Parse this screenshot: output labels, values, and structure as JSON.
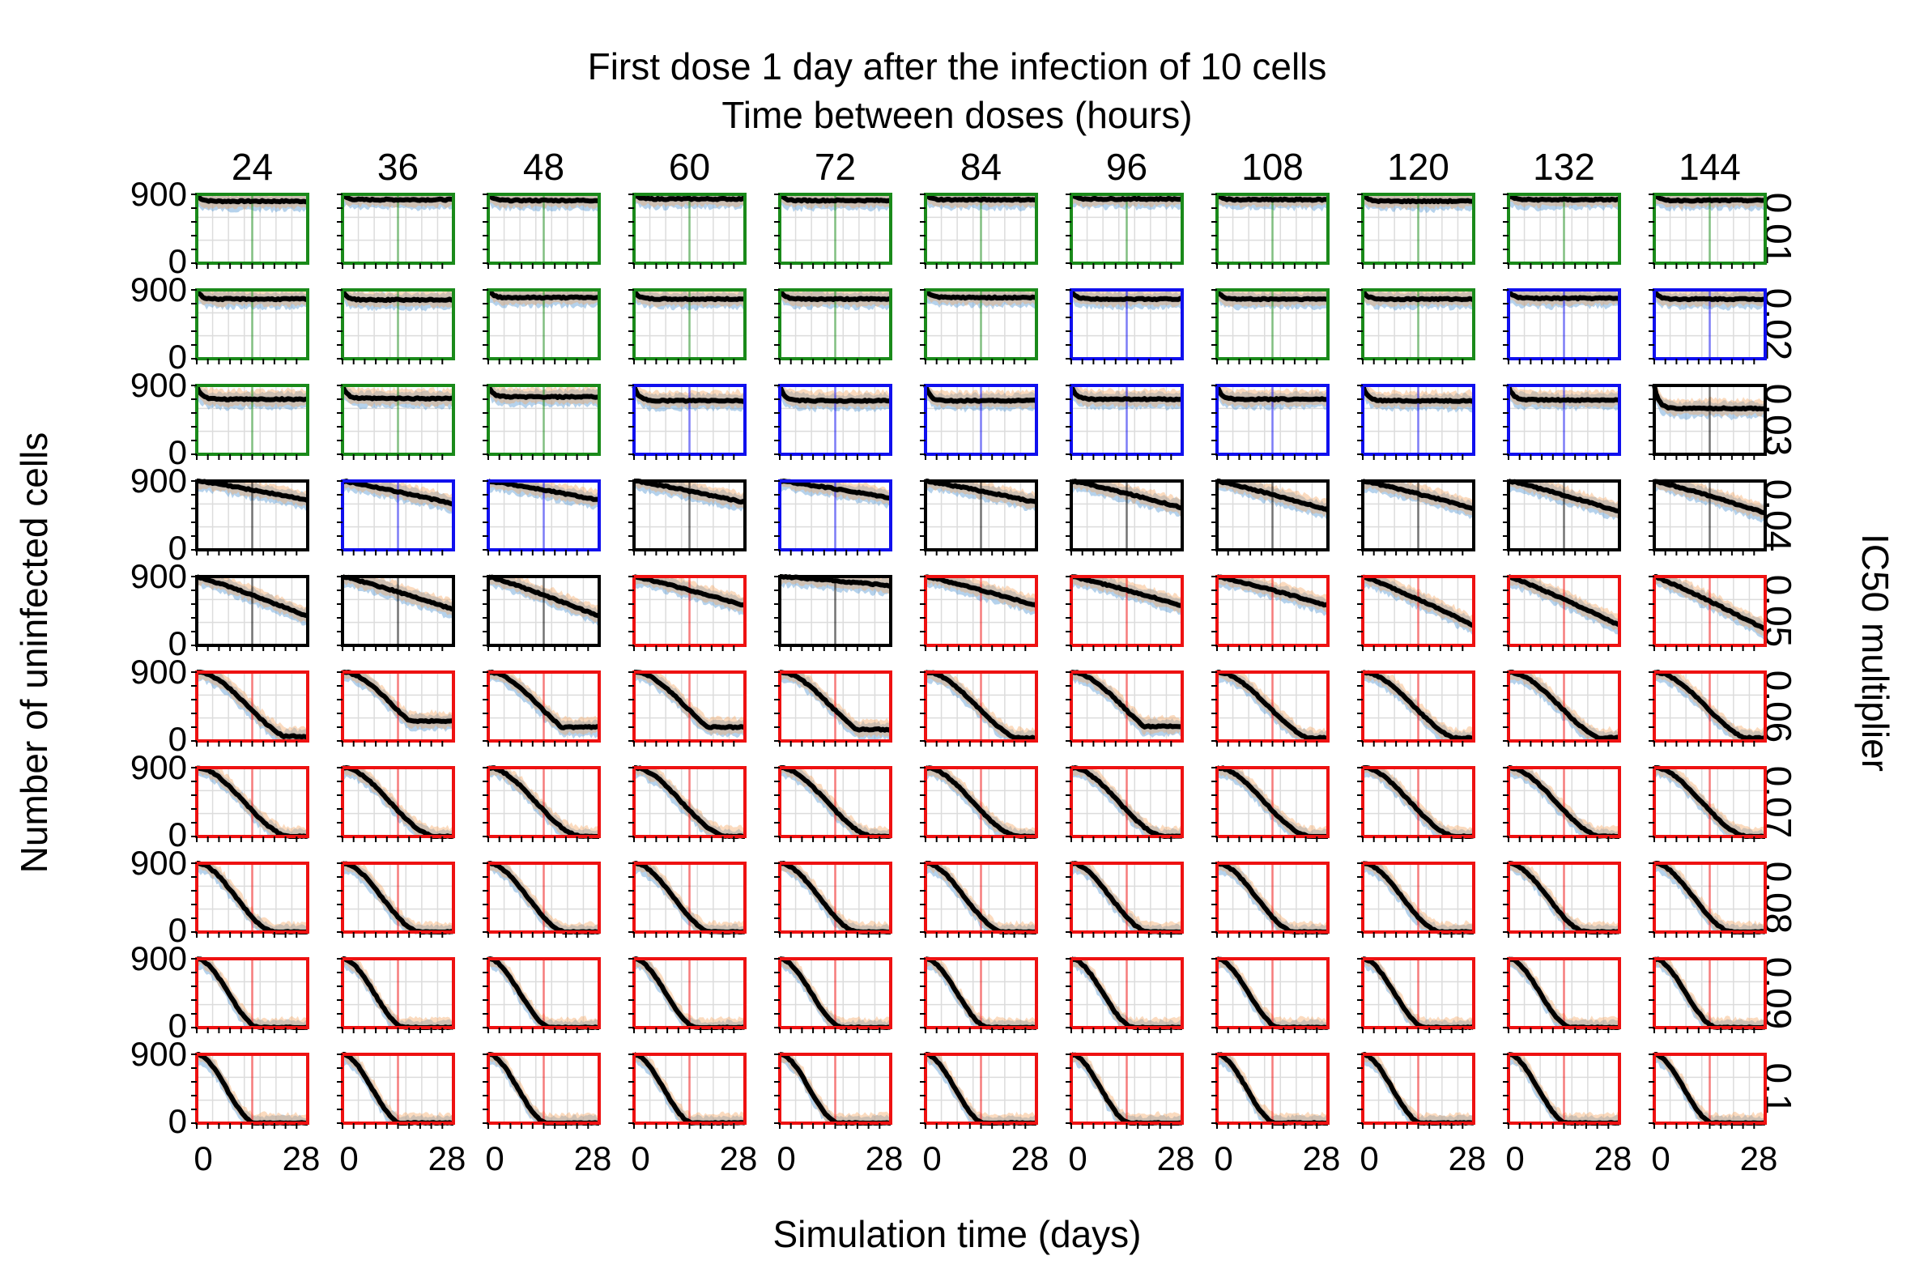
{
  "chart_data": {
    "type": "line",
    "title": "First dose 1 day after the infection of 10 cells",
    "subtitle": "Time between doses (hours)",
    "xlabel": "Simulation time (days)",
    "ylabel": "Number of uninfected cells",
    "right_label": "IC50 multiplier",
    "columns": [
      "24",
      "36",
      "48",
      "60",
      "72",
      "84",
      "96",
      "108",
      "120",
      "132",
      "144"
    ],
    "rows": [
      "0.01",
      "0.02",
      "0.03",
      "0.04",
      "0.05",
      "0.06",
      "0.07",
      "0.08",
      "0.09",
      "0.1"
    ],
    "xlim": [
      0,
      28
    ],
    "ylim": [
      0,
      900
    ],
    "x_tick_labels": [
      "0",
      "28"
    ],
    "y_tick_labels": [
      "900",
      "0"
    ],
    "frame_colors": {
      "g": "#1a8a1a",
      "b": "#1010ee",
      "k": "#000000",
      "r": "#ee1111"
    },
    "band_colors": {
      "blue": "#5b9bd5",
      "orange": "#f4a460",
      "grey": "#9e9e9e",
      "median": "#000000"
    },
    "frame_grid": [
      [
        "g",
        "g",
        "g",
        "g",
        "g",
        "g",
        "g",
        "g",
        "g",
        "g",
        "g"
      ],
      [
        "g",
        "g",
        "g",
        "g",
        "g",
        "g",
        "b",
        "g",
        "g",
        "b",
        "b"
      ],
      [
        "g",
        "g",
        "g",
        "b",
        "b",
        "b",
        "b",
        "b",
        "b",
        "b",
        "k"
      ],
      [
        "k",
        "b",
        "b",
        "k",
        "b",
        "k",
        "k",
        "k",
        "k",
        "k",
        "k"
      ],
      [
        "k",
        "k",
        "k",
        "r",
        "k",
        "r",
        "r",
        "r",
        "r",
        "r",
        "r"
      ],
      [
        "r",
        "r",
        "r",
        "r",
        "r",
        "r",
        "r",
        "r",
        "r",
        "r",
        "r"
      ],
      [
        "r",
        "r",
        "r",
        "r",
        "r",
        "r",
        "r",
        "r",
        "r",
        "r",
        "r"
      ],
      [
        "r",
        "r",
        "r",
        "r",
        "r",
        "r",
        "r",
        "r",
        "r",
        "r",
        "r"
      ],
      [
        "r",
        "r",
        "r",
        "r",
        "r",
        "r",
        "r",
        "r",
        "r",
        "r",
        "r"
      ],
      [
        "r",
        "r",
        "r",
        "r",
        "r",
        "r",
        "r",
        "r",
        "r",
        "r",
        "r"
      ]
    ],
    "median_end_values": [
      [
        810,
        830,
        820,
        840,
        820,
        830,
        840,
        830,
        810,
        830,
        820
      ],
      [
        780,
        770,
        800,
        780,
        780,
        800,
        780,
        780,
        780,
        790,
        780
      ],
      [
        720,
        730,
        750,
        700,
        700,
        700,
        720,
        720,
        700,
        710,
        600
      ],
      [
        650,
        600,
        650,
        620,
        680,
        620,
        550,
        520,
        540,
        500,
        480
      ],
      [
        380,
        470,
        380,
        520,
        780,
        520,
        520,
        520,
        260,
        260,
        210
      ],
      [
        60,
        260,
        180,
        180,
        150,
        40,
        190,
        40,
        40,
        40,
        40
      ],
      [
        0,
        0,
        0,
        0,
        0,
        0,
        0,
        0,
        0,
        0,
        0
      ],
      [
        0,
        0,
        0,
        0,
        0,
        0,
        0,
        0,
        0,
        0,
        0
      ],
      [
        0,
        0,
        0,
        0,
        0,
        0,
        0,
        0,
        0,
        0,
        0
      ],
      [
        0,
        0,
        0,
        0,
        0,
        0,
        0,
        0,
        0,
        0,
        0
      ]
    ],
    "days_to_clearance_by_row": [
      null,
      null,
      null,
      null,
      null,
      26,
      24,
      20,
      16,
      15
    ]
  }
}
